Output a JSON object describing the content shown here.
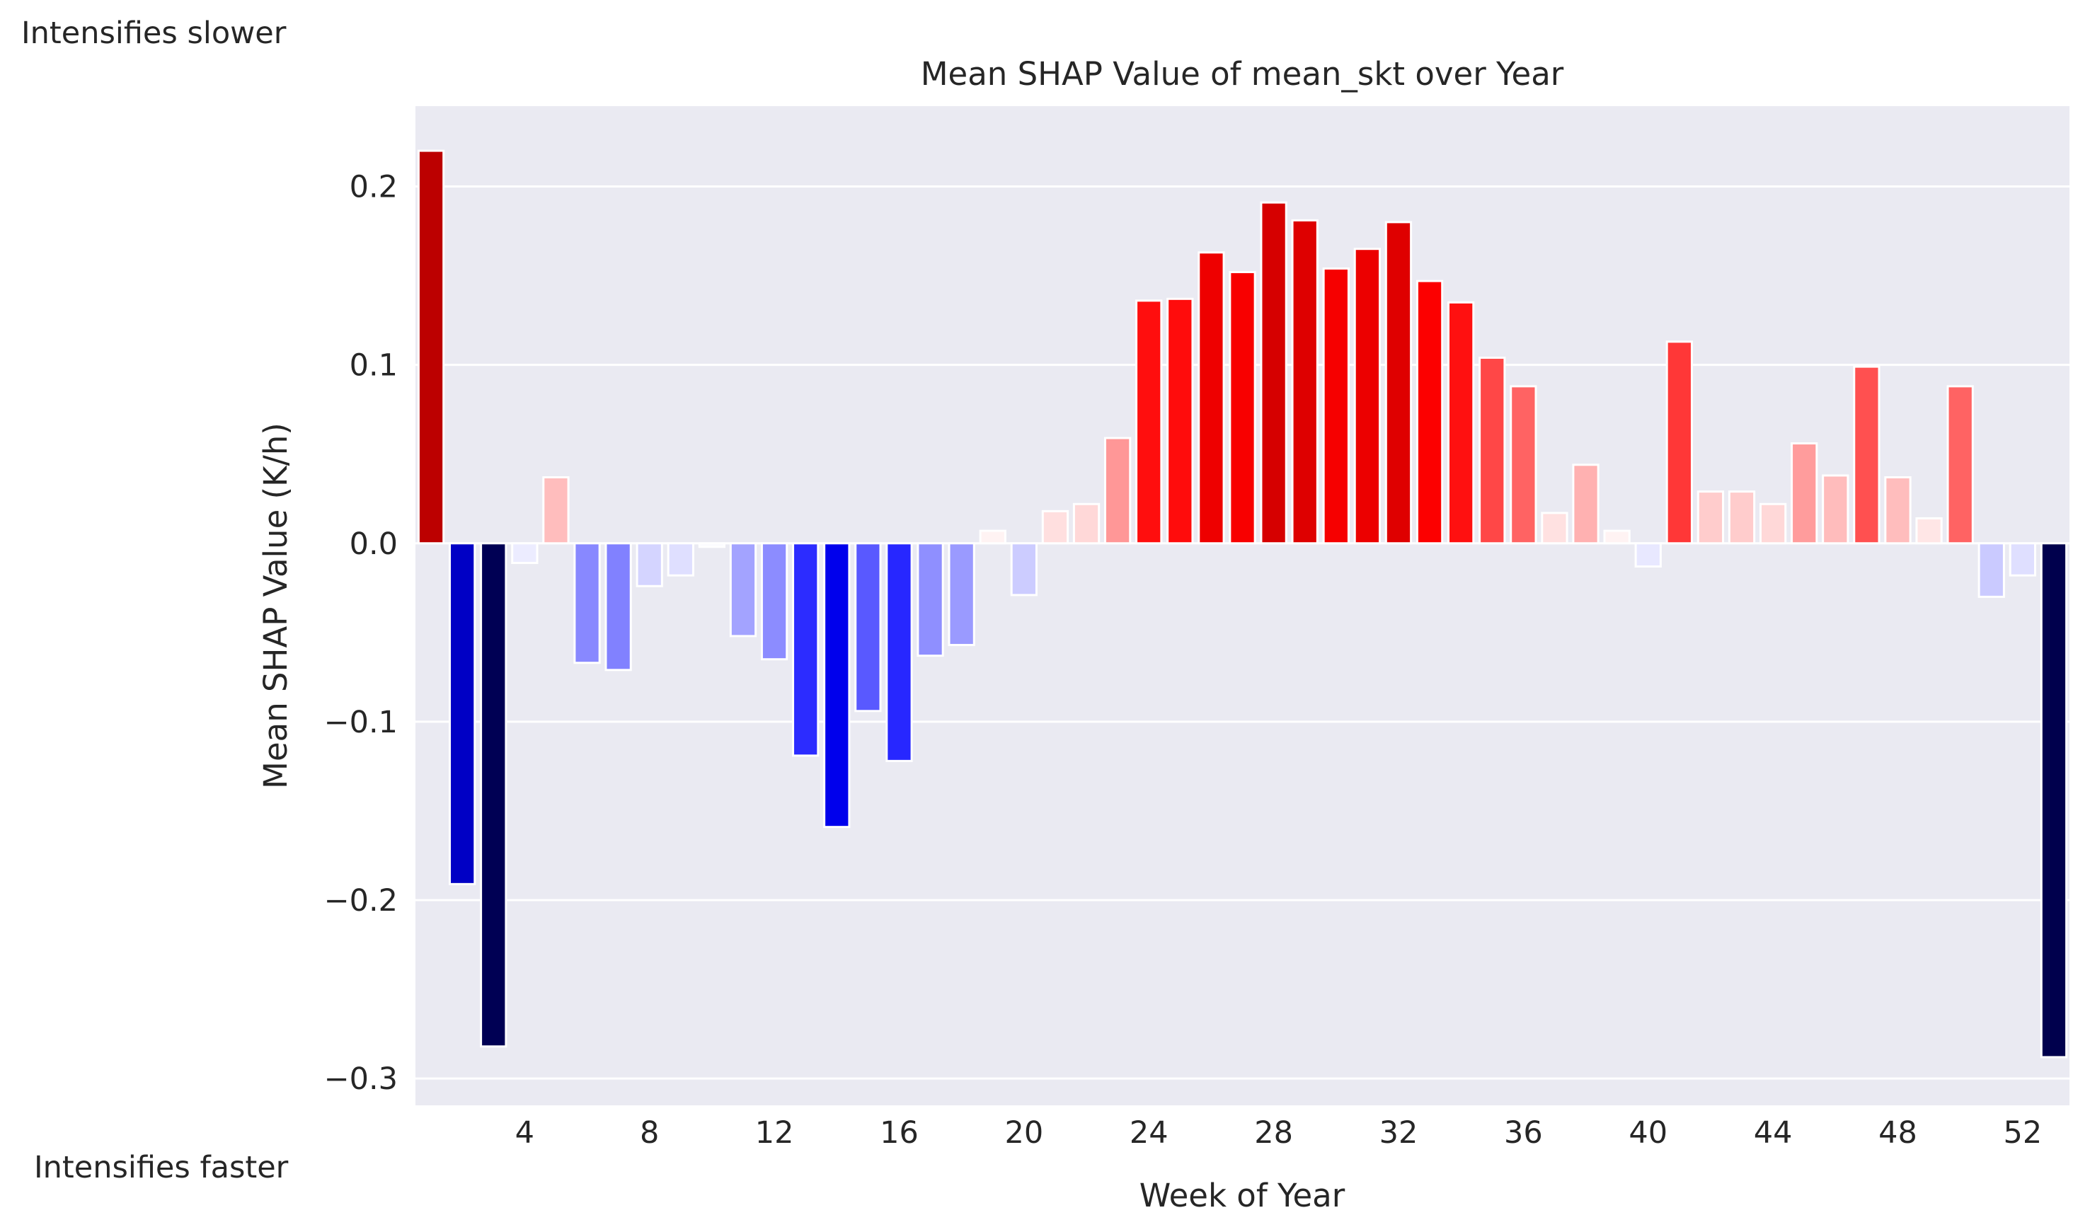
{
  "annotations": {
    "top": "Intensifies slower",
    "bottom": "Intensifies faster"
  },
  "chart_data": {
    "type": "bar",
    "title": "Mean SHAP Value of mean_skt over Year",
    "xlabel": "Week of Year",
    "ylabel": "Mean SHAP Value (K/h)",
    "ylim": [
      -0.315,
      0.245
    ],
    "yticks": [
      -0.3,
      -0.2,
      -0.1,
      0.0,
      0.1,
      0.2
    ],
    "ytick_labels": [
      "−0.3",
      "−0.2",
      "−0.1",
      "0.0",
      "0.1",
      "0.2"
    ],
    "xticks": [
      4,
      8,
      12,
      16,
      20,
      24,
      28,
      32,
      36,
      40,
      44,
      48,
      52
    ],
    "xtick_labels": [
      "4",
      "8",
      "12",
      "16",
      "20",
      "24",
      "28",
      "32",
      "36",
      "40",
      "44",
      "48",
      "52"
    ],
    "grid": true,
    "background": "#eaeaf2",
    "colormap": "seismic",
    "categories": [
      1,
      2,
      3,
      4,
      5,
      6,
      7,
      8,
      9,
      10,
      11,
      12,
      13,
      14,
      15,
      16,
      17,
      18,
      19,
      20,
      21,
      22,
      23,
      24,
      25,
      26,
      27,
      28,
      29,
      30,
      31,
      32,
      33,
      34,
      35,
      36,
      37,
      38,
      39,
      40,
      41,
      42,
      43,
      44,
      45,
      46,
      47,
      48,
      49,
      50,
      51,
      52,
      53
    ],
    "values": [
      0.22,
      -0.191,
      -0.282,
      -0.011,
      0.037,
      -0.067,
      -0.071,
      -0.024,
      -0.018,
      -0.002,
      -0.052,
      -0.065,
      -0.119,
      -0.159,
      -0.094,
      -0.122,
      -0.063,
      -0.057,
      0.007,
      -0.029,
      0.018,
      0.022,
      0.059,
      0.136,
      0.137,
      0.163,
      0.152,
      0.191,
      0.181,
      0.154,
      0.165,
      0.18,
      0.147,
      0.135,
      0.104,
      0.088,
      0.017,
      0.044,
      0.007,
      -0.013,
      0.113,
      0.029,
      0.029,
      0.022,
      0.056,
      0.038,
      0.099,
      0.037,
      0.014,
      0.088,
      -0.03,
      -0.018,
      -0.288
    ]
  }
}
